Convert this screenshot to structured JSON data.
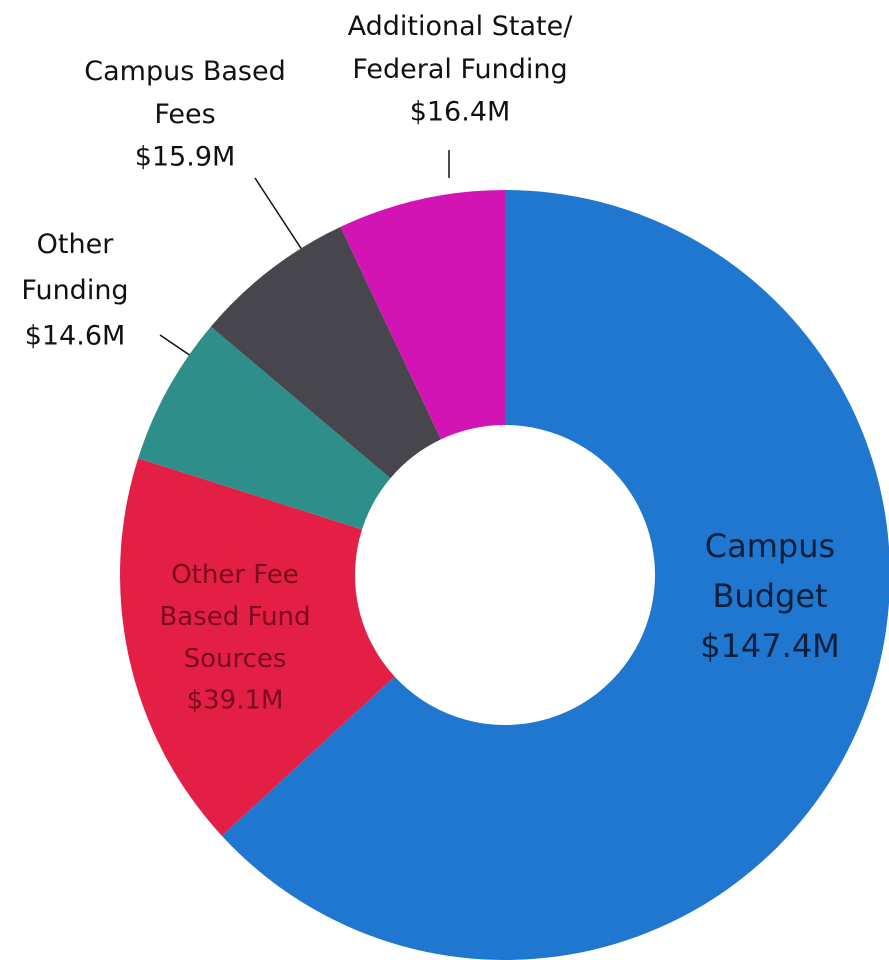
{
  "chart_data": {
    "type": "donut",
    "categories": [
      "Campus\nBudget",
      "Other Fee\nBased Fund\nSources",
      "Other\nFunding",
      "Campus Based\nFees",
      "Additional State/\nFederal Funding"
    ],
    "values": [
      147.4,
      39.1,
      14.6,
      15.9,
      16.4
    ],
    "value_labels": [
      "$147.4M",
      "$39.1M",
      "$14.6M",
      "$15.9M",
      "$16.4M"
    ],
    "colors": [
      "#1f77d0",
      "#e31f45",
      "#2e8f8a",
      "#46464c",
      "#d214b4"
    ]
  }
}
